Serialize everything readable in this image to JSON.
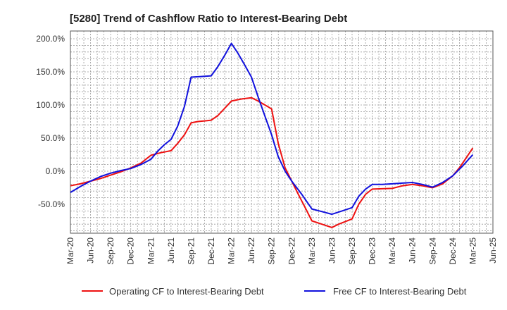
{
  "chart_data": {
    "type": "line",
    "title": "[5280]  Trend of Cashflow Ratio to Interest-Bearing Debt",
    "xlabel": "",
    "ylabel": "",
    "ylim": [
      -92,
      200
    ],
    "yticks": [
      200,
      150,
      100,
      50,
      0,
      -50
    ],
    "ytick_labels": [
      "200.0%",
      "150.0%",
      "100.0%",
      "50.0%",
      "0.0%",
      "-50.0%"
    ],
    "x_tick_labels": [
      "Mar-20",
      "Jun-20",
      "Sep-20",
      "Dec-20",
      "Mar-21",
      "Jun-21",
      "Sep-21",
      "Dec-21",
      "Mar-22",
      "Jun-22",
      "Sep-22",
      "Dec-22",
      "Mar-23",
      "Jun-23",
      "Sep-23",
      "Dec-23",
      "Mar-24",
      "Jun-24",
      "Sep-24",
      "Dec-24",
      "Mar-25",
      "Jun-25"
    ],
    "grid": true,
    "legend_position": "bottom",
    "series": [
      {
        "name": "Operating CF to Interest-Bearing Debt",
        "color": "#ee1111",
        "points": [
          [
            0,
            -22
          ],
          [
            0.5,
            -19
          ],
          [
            1,
            -15
          ],
          [
            1.5,
            -11
          ],
          [
            2,
            -6
          ],
          [
            2.5,
            -1
          ],
          [
            3,
            5
          ],
          [
            3.5,
            12
          ],
          [
            4,
            24
          ],
          [
            4.5,
            28
          ],
          [
            5,
            31
          ],
          [
            5.33,
            42
          ],
          [
            5.67,
            55
          ],
          [
            6,
            73
          ],
          [
            6.33,
            75
          ],
          [
            6.67,
            76
          ],
          [
            7,
            77
          ],
          [
            7.33,
            84
          ],
          [
            7.67,
            95
          ],
          [
            8,
            106
          ],
          [
            8.5,
            109
          ],
          [
            9,
            111
          ],
          [
            9.33,
            106
          ],
          [
            9.67,
            100
          ],
          [
            10,
            94
          ],
          [
            10.33,
            42
          ],
          [
            10.67,
            5
          ],
          [
            11,
            -15
          ],
          [
            11.33,
            -35
          ],
          [
            11.67,
            -55
          ],
          [
            12,
            -75
          ],
          [
            12.5,
            -80
          ],
          [
            13,
            -85
          ],
          [
            13.33,
            -80
          ],
          [
            13.67,
            -76
          ],
          [
            14,
            -72
          ],
          [
            14.33,
            -50
          ],
          [
            14.67,
            -35
          ],
          [
            15,
            -27
          ],
          [
            16,
            -26
          ],
          [
            16.5,
            -22
          ],
          [
            17,
            -20
          ],
          [
            17.5,
            -22
          ],
          [
            18,
            -25
          ],
          [
            18.5,
            -19
          ],
          [
            19,
            -7
          ],
          [
            19.33,
            5
          ],
          [
            19.67,
            20
          ],
          [
            20,
            35
          ]
        ]
      },
      {
        "name": "Free CF to Interest-Bearing Debt",
        "color": "#1111dd",
        "points": [
          [
            0,
            -32
          ],
          [
            0.5,
            -23
          ],
          [
            1,
            -15
          ],
          [
            1.5,
            -8
          ],
          [
            2,
            -3
          ],
          [
            2.5,
            1
          ],
          [
            3,
            4
          ],
          [
            3.5,
            10
          ],
          [
            4,
            18
          ],
          [
            4.33,
            30
          ],
          [
            4.67,
            40
          ],
          [
            5,
            48
          ],
          [
            5.33,
            68
          ],
          [
            5.67,
            98
          ],
          [
            6,
            142
          ],
          [
            6.5,
            143
          ],
          [
            7,
            144
          ],
          [
            7.33,
            158
          ],
          [
            7.67,
            175
          ],
          [
            8,
            193
          ],
          [
            8.33,
            178
          ],
          [
            8.67,
            160
          ],
          [
            9,
            142
          ],
          [
            9.33,
            112
          ],
          [
            9.67,
            83
          ],
          [
            10,
            55
          ],
          [
            10.33,
            22
          ],
          [
            10.67,
            0
          ],
          [
            11,
            -15
          ],
          [
            11.5,
            -35
          ],
          [
            12,
            -57
          ],
          [
            12.5,
            -61
          ],
          [
            13,
            -65
          ],
          [
            13.5,
            -60
          ],
          [
            14,
            -55
          ],
          [
            14.33,
            -38
          ],
          [
            14.67,
            -27
          ],
          [
            15,
            -20
          ],
          [
            15.5,
            -20
          ],
          [
            16,
            -19
          ],
          [
            16.5,
            -18
          ],
          [
            17,
            -17
          ],
          [
            17.5,
            -20
          ],
          [
            18,
            -24
          ],
          [
            18.5,
            -17
          ],
          [
            19,
            -7
          ],
          [
            19.5,
            8
          ],
          [
            20,
            25
          ]
        ]
      }
    ]
  }
}
